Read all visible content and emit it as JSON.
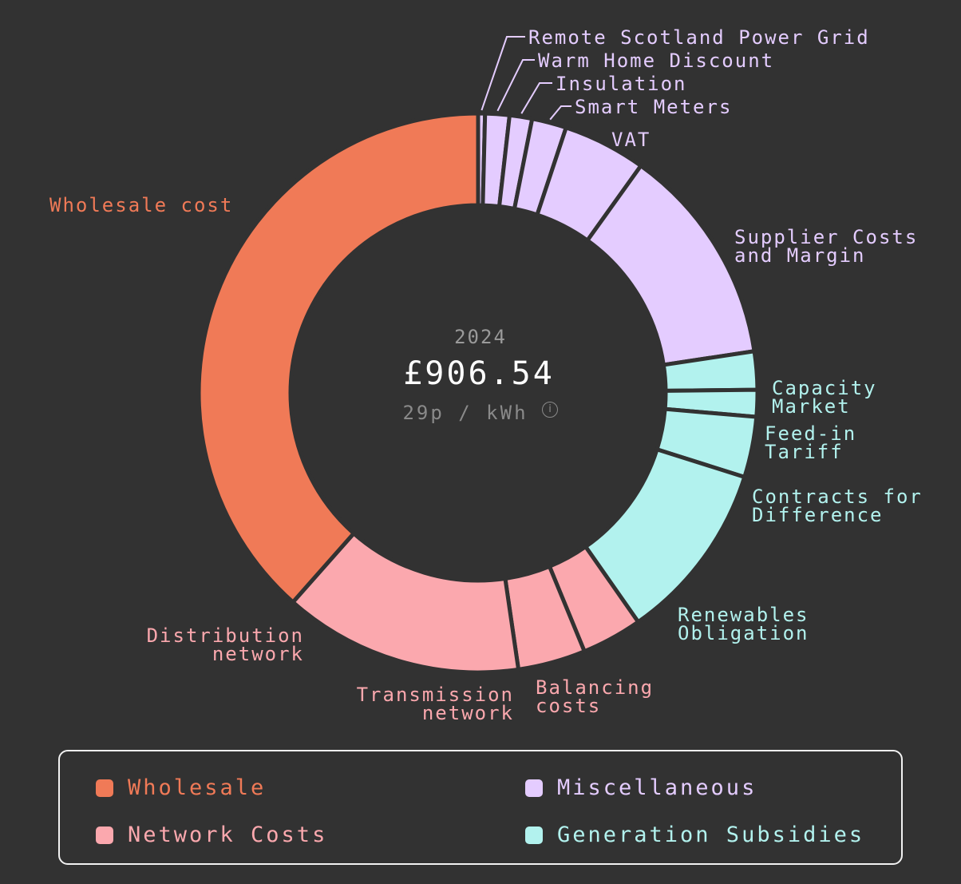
{
  "chart_data": {
    "type": "pie",
    "center": {
      "year": "2024",
      "total": "£906.54",
      "rate": "29p / kWh"
    },
    "slices": [
      {
        "label": "Remote Scotland Power Grid",
        "value": 3.6,
        "category": "Miscellaneous"
      },
      {
        "label": "Warm Home Discount",
        "value": 12.7,
        "category": "Miscellaneous"
      },
      {
        "label": "Insulation",
        "value": 11.8,
        "category": "Miscellaneous"
      },
      {
        "label": "Smart Meters",
        "value": 18.1,
        "category": "Miscellaneous"
      },
      {
        "label": "VAT",
        "value": 43.5,
        "category": "Miscellaneous"
      },
      {
        "label": "Supplier Costs and Margin",
        "value": 115.2,
        "category": "Miscellaneous"
      },
      {
        "label": "Capacity Market",
        "value": 20.0,
        "category": "Generation Subsidies"
      },
      {
        "label": "Feed-in Tariff",
        "value": 14.0,
        "category": "Generation Subsidies"
      },
      {
        "label": "Contracts for Difference",
        "value": 31.7,
        "category": "Generation Subsidies"
      },
      {
        "label": "Renewables Obligation",
        "value": 94.4,
        "category": "Generation Subsidies"
      },
      {
        "label": "Balancing costs",
        "value": 31.7,
        "category": "Network Costs"
      },
      {
        "label": "Transmission network",
        "value": 35.4,
        "category": "Network Costs"
      },
      {
        "label": "Distribution network",
        "value": 125.4,
        "category": "Network Costs"
      },
      {
        "label": "Wholesale cost",
        "value": 348.5,
        "category": "Wholesale"
      }
    ],
    "legend": [
      {
        "label": "Wholesale",
        "color": "#f07a57"
      },
      {
        "label": "Miscellaneous",
        "color": "#e4ccff"
      },
      {
        "label": "Network Costs",
        "color": "#fba8ae"
      },
      {
        "label": "Generation Subsidies",
        "color": "#b2f2ee"
      }
    ]
  },
  "colors": {
    "background": "#323232",
    "Wholesale": "#f07a57",
    "Miscellaneous": "#e4ccff",
    "Network Costs": "#fba8ae",
    "Generation Subsidies": "#b2f2ee"
  }
}
